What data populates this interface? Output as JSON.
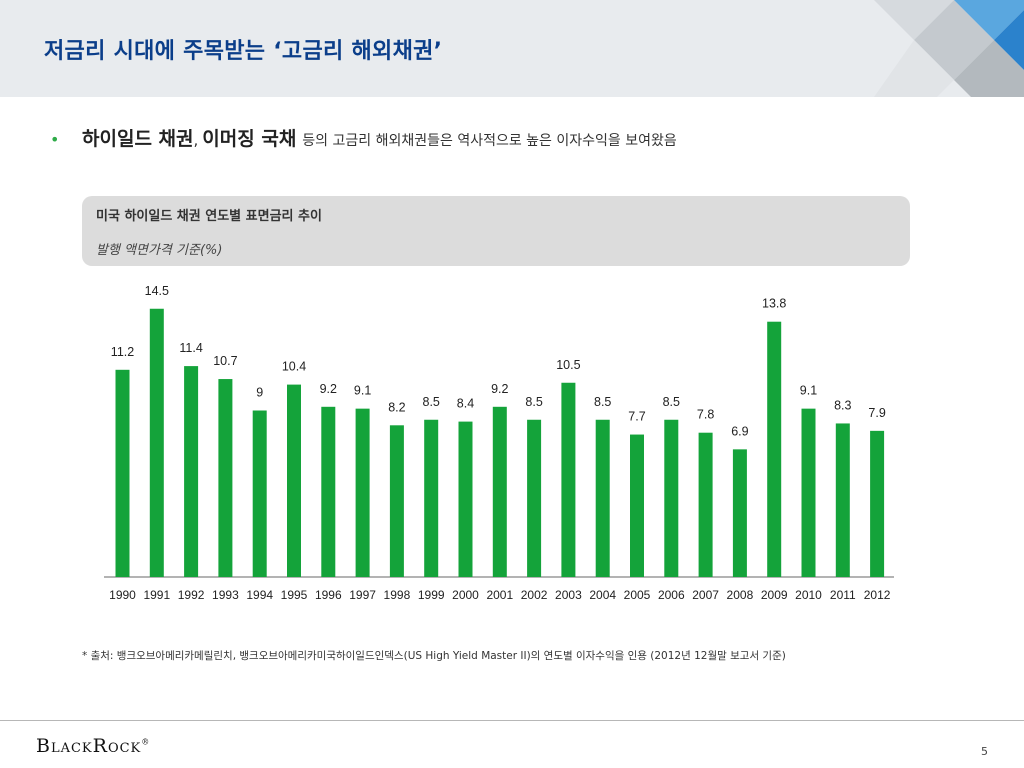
{
  "header": {
    "title": "저금리 시대에 주목받는 ‘고금리 해외채권’"
  },
  "bullet": {
    "strong1": "하이일드 채권",
    "separator": ",",
    "strong2": "이머징 국채",
    "rest": "등의 고금리 해외채권들은 역사적으로 높은 이자수익을 보여왔음"
  },
  "chart_box": {
    "title": "미국 하이일드 채권 연도별 표면금리 추이",
    "subtitle": "발행 액면가격 기준(%)"
  },
  "chart_data": {
    "type": "bar",
    "title": "미국 하이일드 채권 연도별 표면금리 추이",
    "subtitle": "발행 액면가격 기준(%)",
    "xlabel": "",
    "ylabel": "",
    "categories": [
      "1990",
      "1991",
      "1992",
      "1993",
      "1994",
      "1995",
      "1996",
      "1997",
      "1998",
      "1999",
      "2000",
      "2001",
      "2002",
      "2003",
      "2004",
      "2005",
      "2006",
      "2007",
      "2008",
      "2009",
      "2010",
      "2011",
      "2012"
    ],
    "values": [
      11.2,
      14.5,
      11.4,
      10.7,
      9,
      10.4,
      9.2,
      9.1,
      8.2,
      8.5,
      8.4,
      9.2,
      8.5,
      10.5,
      8.5,
      7.7,
      8.5,
      7.8,
      6.9,
      13.8,
      9.1,
      8.3,
      7.9
    ],
    "value_labels": [
      "11.2",
      "14.5",
      "11.4",
      "10.7",
      "9",
      "10.4",
      "9.2",
      "9.1",
      "8.2",
      "8.5",
      "8.4",
      "9.2",
      "8.5",
      "10.5",
      "8.5",
      "7.7",
      "8.5",
      "7.8",
      "6.9",
      "13.8",
      "9.1",
      "8.3",
      "7.9"
    ],
    "bar_color": "#14a33a",
    "grid": false,
    "legend": "none"
  },
  "footnote": "* 출처: 뱅크오브아메리카메릴린치, 뱅크오브아메리카미국하이일드인덱스(US High Yield Master II)의 연도별 이자수익을 인용 (2012년 12월말 보고서 기준)",
  "footer": {
    "logo": "BlackRock",
    "logo_mark": "®",
    "page_number": "5"
  },
  "colors": {
    "title": "#0b3e8a",
    "bullet": "#2eab48",
    "header_bg": "#e8ebee",
    "chart_box_bg": "#dcdcdc"
  }
}
